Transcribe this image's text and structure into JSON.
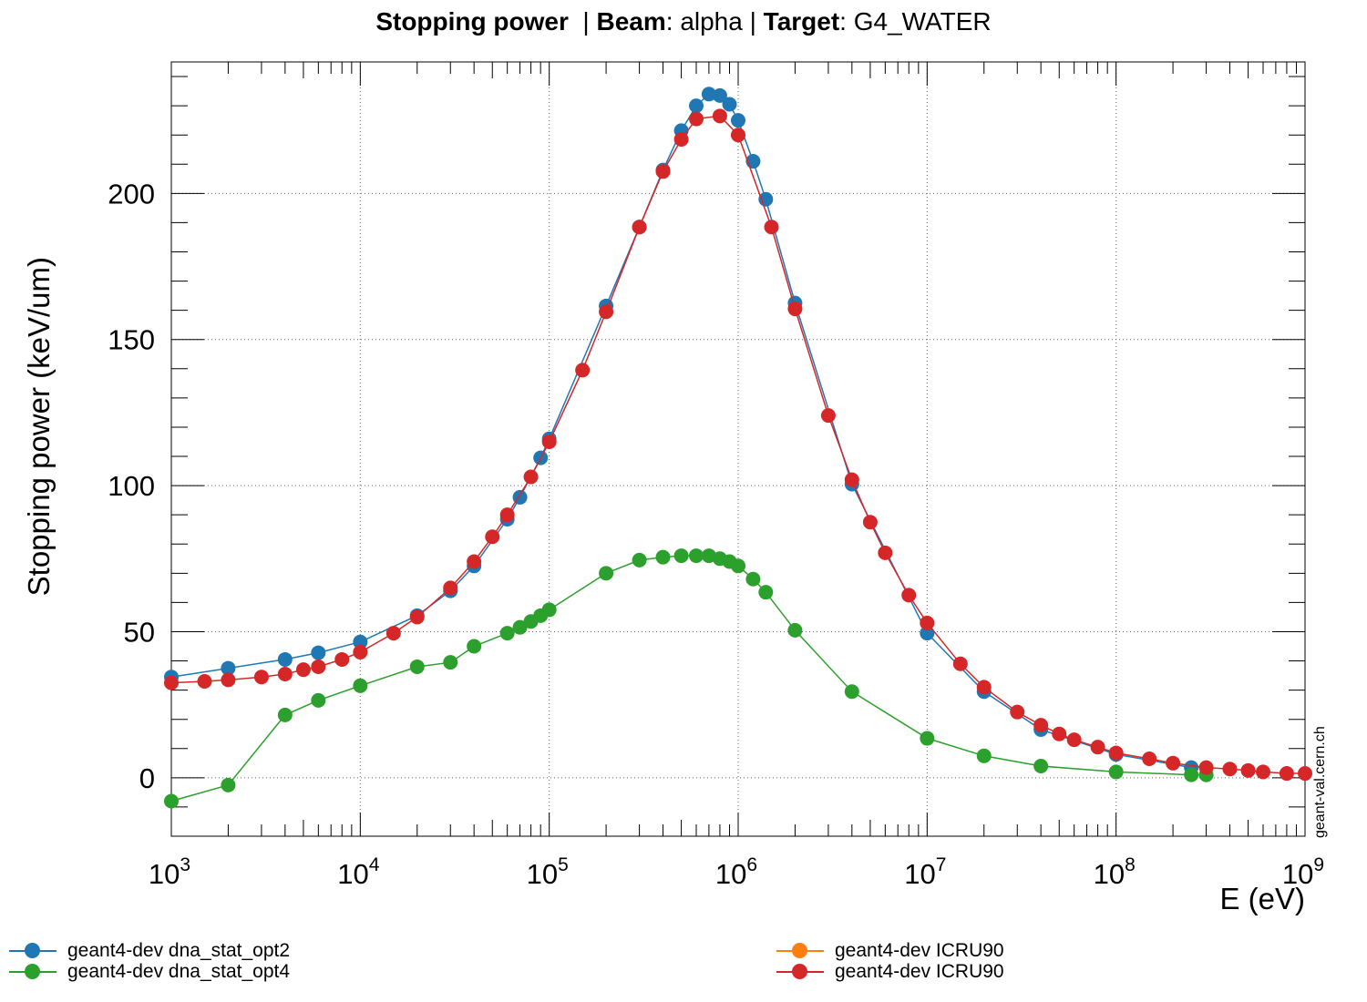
{
  "title": {
    "quantity": "Stopping power",
    "beam_label": "Beam",
    "beam_value": "alpha",
    "target_label": "Target",
    "target_value": "G4_WATER"
  },
  "watermark": "geant-val.cern.ch",
  "chart_data": {
    "type": "line",
    "title": "Stopping power | Beam: alpha | Target: G4_WATER",
    "xlabel": "E (eV)",
    "ylabel": "Stopping power (keV/um)",
    "xscale": "log",
    "xlim": [
      1000,
      1000000000
    ],
    "ylim": [
      -20,
      245
    ],
    "x_tick_labels": [
      {
        "base": "10",
        "exp": "3"
      },
      {
        "base": "10",
        "exp": "4"
      },
      {
        "base": "10",
        "exp": "5"
      },
      {
        "base": "10",
        "exp": "6"
      },
      {
        "base": "10",
        "exp": "7"
      },
      {
        "base": "10",
        "exp": "8"
      },
      {
        "base": "10",
        "exp": "9"
      }
    ],
    "y_ticks": [
      0,
      50,
      100,
      150,
      200
    ],
    "grid": true,
    "legend_position": "bottom",
    "series": [
      {
        "name": "geant4-dev dna_stat_opt2",
        "color": "#1f77b4",
        "x": [
          1000,
          2000,
          4000,
          6000,
          10000,
          20000,
          30000,
          40000,
          60000,
          70000,
          90000,
          100000,
          200000,
          300000,
          400000,
          500000,
          600000,
          700000,
          800000,
          900000,
          1000000,
          1200000,
          1400000,
          2000000,
          4000000,
          10000000,
          20000000,
          40000000,
          100000000,
          250000000
        ],
        "y": [
          34.5,
          37.5,
          40.5,
          42.8,
          46.5,
          55.5,
          64,
          72.5,
          88.5,
          96,
          109.5,
          116,
          161.5,
          188.5,
          208,
          221.5,
          230,
          234,
          233.5,
          230.5,
          225,
          211,
          198,
          162.5,
          100.5,
          49.5,
          29.5,
          16.5,
          8,
          3.5
        ]
      },
      {
        "name": "geant4-dev dna_stat_opt4",
        "color": "#2ca02c",
        "x": [
          1000,
          2000,
          4000,
          6000,
          10000,
          20000,
          30000,
          40000,
          60000,
          70000,
          80000,
          90000,
          100000,
          200000,
          300000,
          400000,
          500000,
          600000,
          700000,
          800000,
          900000,
          1000000,
          1200000,
          1400000,
          2000000,
          4000000,
          10000000,
          20000000,
          40000000,
          100000000,
          250000000,
          300000000
        ],
        "y": [
          -8,
          -2.5,
          21.5,
          26.5,
          31.5,
          38,
          39.5,
          45,
          49.5,
          51.5,
          53.5,
          55.5,
          57.5,
          70,
          74.5,
          75.5,
          76,
          76,
          76,
          75,
          74,
          72.5,
          68,
          63.5,
          50.5,
          29.5,
          13.5,
          7.5,
          4,
          2,
          1,
          1
        ]
      },
      {
        "name": "geant4-dev ICRU90",
        "color": "#ff7f0e",
        "x": [],
        "y": []
      },
      {
        "name": "geant4-dev ICRU90",
        "color": "#d62728",
        "x": [
          1000,
          1500,
          2000,
          3000,
          4000,
          5000,
          6000,
          8000,
          10000,
          15000,
          20000,
          30000,
          40000,
          50000,
          60000,
          80000,
          100000,
          150000,
          200000,
          300000,
          400000,
          500000,
          600000,
          800000,
          1000000,
          1500000,
          2000000,
          3000000,
          4000000,
          5000000,
          6000000,
          8000000,
          10000000,
          15000000,
          20000000,
          30000000,
          40000000,
          50000000,
          60000000,
          80000000,
          100000000,
          150000000,
          200000000,
          300000000,
          400000000,
          500000000,
          600000000,
          800000000,
          1000000000
        ],
        "y": [
          32.5,
          33,
          33.5,
          34.5,
          35.5,
          37,
          38,
          40.5,
          43,
          49.5,
          55,
          65,
          74,
          82.5,
          90,
          103,
          115,
          139.5,
          159.5,
          188.5,
          207.5,
          218.5,
          225.5,
          226.5,
          220,
          188.5,
          160.5,
          124,
          102,
          87.5,
          77,
          62.5,
          53,
          39,
          31,
          22.5,
          18,
          15,
          13,
          10.5,
          8.5,
          6.5,
          5,
          3.5,
          3,
          2.5,
          2,
          1.5,
          1.5
        ]
      }
    ]
  }
}
